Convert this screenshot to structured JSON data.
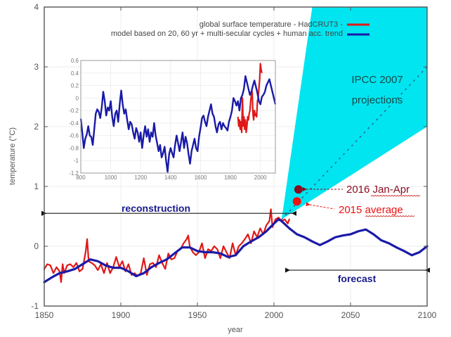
{
  "chart_data": {
    "type": "line",
    "title": "",
    "xlabel": "year",
    "ylabel": "temperature (°C)",
    "xlim": [
      1850,
      2100
    ],
    "ylim": [
      -1,
      4
    ],
    "x_ticks": [
      1850,
      1900,
      1950,
      2000,
      2050,
      2100
    ],
    "y_ticks": [
      -1,
      0,
      1,
      2,
      3,
      4
    ],
    "grid": true,
    "legend_position": "top-right",
    "legend": [
      {
        "label": "global surface temperature - HadCRUT3 -",
        "color": "#e01818"
      },
      {
        "label": "model based on 20, 60 yr + multi-secular cycles + human acc. trend",
        "color": "#1a1aa8"
      }
    ],
    "series": [
      {
        "name": "global surface temperature - HadCRUT3",
        "color": "#e01818",
        "x": [
          1850,
          1852,
          1854,
          1856,
          1858,
          1860,
          1861,
          1862,
          1863,
          1865,
          1867,
          1869,
          1871,
          1873,
          1875,
          1877,
          1878,
          1879,
          1881,
          1883,
          1885,
          1887,
          1889,
          1891,
          1893,
          1895,
          1897,
          1899,
          1901,
          1903,
          1905,
          1907,
          1909,
          1911,
          1913,
          1915,
          1917,
          1919,
          1921,
          1923,
          1925,
          1927,
          1929,
          1931,
          1933,
          1935,
          1937,
          1939,
          1941,
          1943,
          1944,
          1945,
          1947,
          1949,
          1951,
          1953,
          1955,
          1957,
          1959,
          1961,
          1963,
          1965,
          1967,
          1969,
          1971,
          1973,
          1975,
          1977,
          1979,
          1981,
          1983,
          1985,
          1987,
          1989,
          1991,
          1993,
          1995,
          1997,
          1998,
          1999,
          2001,
          2003,
          2005,
          2007,
          2009,
          2010
        ],
        "values": [
          -0.38,
          -0.3,
          -0.32,
          -0.45,
          -0.35,
          -0.42,
          -0.6,
          -0.3,
          -0.45,
          -0.32,
          -0.3,
          -0.35,
          -0.28,
          -0.42,
          -0.38,
          -0.1,
          0.12,
          -0.25,
          -0.28,
          -0.32,
          -0.4,
          -0.3,
          -0.45,
          -0.28,
          -0.45,
          -0.35,
          -0.18,
          -0.35,
          -0.25,
          -0.42,
          -0.3,
          -0.48,
          -0.45,
          -0.5,
          -0.45,
          -0.2,
          -0.48,
          -0.3,
          -0.28,
          -0.35,
          -0.15,
          -0.28,
          -0.38,
          -0.12,
          -0.22,
          -0.2,
          -0.08,
          -0.05,
          0.05,
          0.12,
          0.18,
          0.0,
          -0.1,
          -0.15,
          -0.1,
          0.05,
          -0.2,
          -0.05,
          -0.08,
          0.0,
          -0.05,
          -0.2,
          0.0,
          -0.1,
          -0.2,
          0.05,
          -0.15,
          0.0,
          0.05,
          0.12,
          0.2,
          0.05,
          0.25,
          0.15,
          0.3,
          0.2,
          0.35,
          0.42,
          0.62,
          0.32,
          0.45,
          0.48,
          0.42,
          0.45,
          0.38,
          0.45
        ]
      },
      {
        "name": "model (reconstruction + forecast)",
        "color": "#1a1aa8",
        "x": [
          1850,
          1855,
          1860,
          1865,
          1870,
          1875,
          1880,
          1885,
          1890,
          1895,
          1900,
          1905,
          1910,
          1915,
          1920,
          1925,
          1930,
          1935,
          1940,
          1945,
          1950,
          1955,
          1960,
          1965,
          1970,
          1975,
          1980,
          1985,
          1990,
          1995,
          2000,
          2003,
          2005,
          2010,
          2015,
          2020,
          2025,
          2030,
          2035,
          2040,
          2045,
          2050,
          2055,
          2060,
          2065,
          2070,
          2075,
          2080,
          2085,
          2090,
          2095,
          2100
        ],
        "values": [
          -0.6,
          -0.52,
          -0.45,
          -0.42,
          -0.38,
          -0.3,
          -0.22,
          -0.25,
          -0.32,
          -0.36,
          -0.36,
          -0.42,
          -0.5,
          -0.45,
          -0.35,
          -0.28,
          -0.22,
          -0.12,
          -0.02,
          -0.02,
          -0.08,
          -0.1,
          -0.1,
          -0.12,
          -0.18,
          -0.15,
          0.0,
          0.08,
          0.15,
          0.25,
          0.38,
          0.45,
          0.42,
          0.3,
          0.2,
          0.15,
          0.08,
          0.02,
          0.08,
          0.15,
          0.18,
          0.2,
          0.25,
          0.28,
          0.2,
          0.1,
          0.05,
          -0.02,
          -0.08,
          -0.15,
          -0.1,
          0.0
        ]
      }
    ],
    "ipcc_projection": {
      "label_line1": "IPCC 2007",
      "label_line2": "projections",
      "color": "#00e5f0",
      "apex": {
        "x": 2005,
        "y": 0.45
      },
      "upper_edge_end": {
        "x": 2025,
        "y": 4.0
      },
      "lower_edge_end": {
        "x": 2100,
        "y": 2.0
      },
      "central_end": {
        "x": 2100,
        "y": 3.0
      }
    },
    "observations": [
      {
        "label": "2016 Jan-Apr",
        "x": 2016,
        "y": 0.95,
        "color": "#8b0a1e",
        "text_color": "#8b0a1e"
      },
      {
        "label": "2015 average",
        "x": 2015,
        "y": 0.75,
        "color": "#f01010",
        "text_color": "#f01010"
      }
    ],
    "annotations": {
      "reconstruction": {
        "label": "reconstruction",
        "from": 1850,
        "to": 2012,
        "y": 0.55
      },
      "forecast": {
        "label": "forecast",
        "from": 2010,
        "to": 2100,
        "y": -0.4
      }
    },
    "inset": {
      "type": "line",
      "xlim": [
        800,
        2100
      ],
      "ylim": [
        -1.2,
        0.6
      ],
      "x_ticks": [
        800,
        1000,
        1200,
        1400,
        1600,
        1800,
        2000
      ],
      "x_tick_labels": [
        "800",
        "1000",
        "1200",
        "1400",
        "1600",
        "1800",
        "2000"
      ],
      "y_ticks": [
        0.6,
        0.4,
        0.2,
        0,
        -0.2,
        -0.4,
        -0.6,
        -0.8,
        -1,
        -1.2
      ],
      "y_tick_labels": [
        "0.6",
        "0.4",
        "0.2",
        "0",
        "-0.2",
        "-0.4",
        "-0.6",
        "-0.8",
        "-1",
        "-1.2"
      ],
      "series": [
        {
          "name": "model",
          "color": "#1a1aa8",
          "x": [
            800,
            810,
            820,
            830,
            840,
            850,
            860,
            870,
            880,
            890,
            900,
            910,
            920,
            930,
            940,
            950,
            960,
            970,
            980,
            990,
            1000,
            1010,
            1020,
            1030,
            1040,
            1050,
            1060,
            1070,
            1080,
            1090,
            1100,
            1110,
            1120,
            1130,
            1140,
            1150,
            1160,
            1170,
            1180,
            1190,
            1200,
            1210,
            1220,
            1230,
            1240,
            1250,
            1260,
            1270,
            1280,
            1290,
            1300,
            1310,
            1320,
            1330,
            1340,
            1350,
            1360,
            1370,
            1380,
            1390,
            1400,
            1410,
            1420,
            1430,
            1440,
            1450,
            1460,
            1470,
            1480,
            1490,
            1500,
            1510,
            1520,
            1530,
            1540,
            1550,
            1560,
            1570,
            1580,
            1590,
            1600,
            1610,
            1620,
            1630,
            1640,
            1650,
            1660,
            1670,
            1680,
            1690,
            1700,
            1710,
            1720,
            1730,
            1740,
            1750,
            1760,
            1770,
            1780,
            1790,
            1800,
            1810,
            1820,
            1830,
            1840,
            1850,
            1860,
            1870,
            1880,
            1890,
            1900,
            1910,
            1920,
            1930,
            1940,
            1950,
            1960,
            1970,
            1980,
            1990,
            2000,
            2010,
            2020,
            2030,
            2040,
            2050,
            2060,
            2070,
            2080,
            2090,
            2100
          ],
          "values": [
            -0.33,
            -0.55,
            -0.8,
            -0.65,
            -0.58,
            -0.45,
            -0.6,
            -0.62,
            -0.75,
            -0.5,
            -0.25,
            -0.18,
            -0.22,
            -0.32,
            -0.15,
            0.1,
            -0.05,
            -0.28,
            -0.15,
            -0.2,
            -0.05,
            -0.3,
            -0.45,
            -0.25,
            -0.2,
            -0.38,
            -0.1,
            0.12,
            -0.1,
            -0.25,
            -0.18,
            -0.35,
            -0.5,
            -0.38,
            -0.42,
            -0.55,
            -0.65,
            -0.48,
            -0.55,
            -0.7,
            -0.55,
            -0.8,
            -0.6,
            -0.45,
            -0.62,
            -0.5,
            -0.7,
            -0.55,
            -0.62,
            -0.4,
            -0.6,
            -0.72,
            -0.85,
            -0.75,
            -0.95,
            -0.88,
            -0.78,
            -1.0,
            -1.18,
            -0.9,
            -0.8,
            -0.88,
            -0.95,
            -0.75,
            -0.6,
            -0.72,
            -0.85,
            -0.7,
            -0.55,
            -0.8,
            -0.62,
            -0.72,
            -0.9,
            -1.05,
            -0.85,
            -0.75,
            -0.65,
            -0.8,
            -0.85,
            -0.62,
            -0.48,
            -0.32,
            -0.28,
            -0.38,
            -0.45,
            -0.3,
            -0.2,
            -0.1,
            -0.25,
            -0.3,
            -0.45,
            -0.55,
            -0.42,
            -0.38,
            -0.5,
            -0.4,
            -0.45,
            -0.48,
            -0.52,
            -0.38,
            -0.3,
            -0.2,
            0.0,
            -0.05,
            -0.12,
            -0.05,
            -0.2,
            0.0,
            0.05,
            0.15,
            0.35,
            0.25,
            0.15,
            0.05,
            0.1,
            0.2,
            0.28,
            0.18,
            0.08,
            -0.05,
            -0.1,
            0.02,
            0.05,
            0.1,
            0.2,
            0.25,
            0.3,
            0.2,
            0.1,
            0.0,
            -0.1
          ]
        },
        {
          "name": "HadCRUT3",
          "color": "#e01818",
          "x": [
            1850,
            1855,
            1860,
            1865,
            1870,
            1875,
            1880,
            1885,
            1890,
            1895,
            1900,
            1905,
            1910,
            1915,
            1920,
            1925,
            1930,
            1935,
            1940,
            1945,
            1950,
            1955,
            1960,
            1965,
            1970,
            1975,
            1980,
            1985,
            1990,
            1995,
            2000,
            2005,
            2010
          ],
          "values": [
            -0.3,
            -0.45,
            -0.35,
            -0.5,
            -0.38,
            -0.55,
            0.0,
            -0.45,
            -0.3,
            -0.5,
            -0.35,
            -0.55,
            -0.45,
            -0.3,
            -0.35,
            -0.25,
            -0.2,
            -0.05,
            0.05,
            0.1,
            -0.25,
            -0.35,
            -0.2,
            -0.28,
            -0.25,
            -0.3,
            -0.05,
            0.0,
            0.15,
            0.3,
            0.55,
            0.45,
            0.4
          ]
        }
      ]
    }
  }
}
